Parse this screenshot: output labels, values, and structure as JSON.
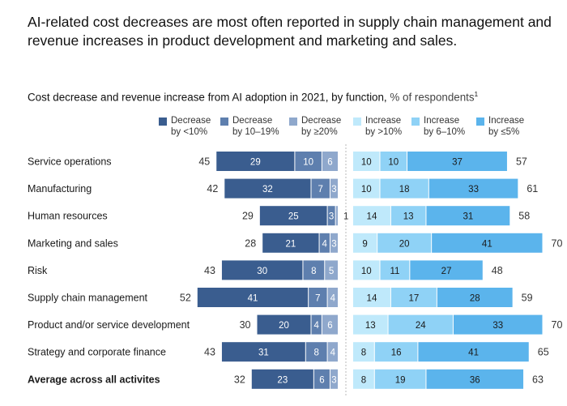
{
  "headline": "AI-related cost decreases are most often reported in supply chain management and revenue increases in product development and marketing and sales.",
  "subtitle": {
    "main": "Cost decrease and revenue increase from AI adoption in 2021, by function,",
    "unit": " % of respondents",
    "footnote": "1"
  },
  "chart_data": {
    "type": "bar",
    "orientation": "horizontal-diverging",
    "categories": [
      "Service operations",
      "Manufacturing",
      "Human resources",
      "Marketing and sales",
      "Risk",
      "Supply chain management",
      "Product and/or service development",
      "Strategy and corporate finance",
      "Average across all activites"
    ],
    "bold_category_index": 8,
    "legend": [
      {
        "line1": "Decrease",
        "line2": "by <10%"
      },
      {
        "line1": "Decrease",
        "line2": "by 10–19%"
      },
      {
        "line1": "Decrease",
        "line2": "by ≥20%"
      },
      {
        "line1": "Increase",
        "line2": "by >10%"
      },
      {
        "line1": "Increase",
        "line2": "by 6–10%"
      },
      {
        "line1": "Increase",
        "line2": "by ≤5%"
      }
    ],
    "colors": [
      "#3a5d8f",
      "#5e7fae",
      "#8fa8cc",
      "#bfe9fb",
      "#8fd2f6",
      "#5bb4ec"
    ],
    "cost_series": [
      {
        "values": [
          29,
          32,
          25,
          21,
          30,
          41,
          20,
          31,
          23
        ]
      },
      {
        "values": [
          10,
          7,
          3,
          4,
          8,
          7,
          4,
          8,
          6
        ]
      },
      {
        "values": [
          6,
          3,
          1,
          3,
          5,
          4,
          6,
          4,
          3
        ]
      }
    ],
    "cost_totals": [
      45,
      42,
      29,
      28,
      43,
      52,
      30,
      43,
      32
    ],
    "revenue_series": [
      {
        "values": [
          10,
          10,
          14,
          9,
          10,
          14,
          13,
          8,
          8
        ]
      },
      {
        "values": [
          10,
          18,
          13,
          20,
          11,
          17,
          24,
          16,
          19
        ]
      },
      {
        "values": [
          37,
          33,
          31,
          41,
          27,
          28,
          33,
          41,
          36
        ]
      }
    ],
    "revenue_totals": [
      57,
      61,
      58,
      70,
      48,
      59,
      70,
      65,
      63
    ]
  }
}
